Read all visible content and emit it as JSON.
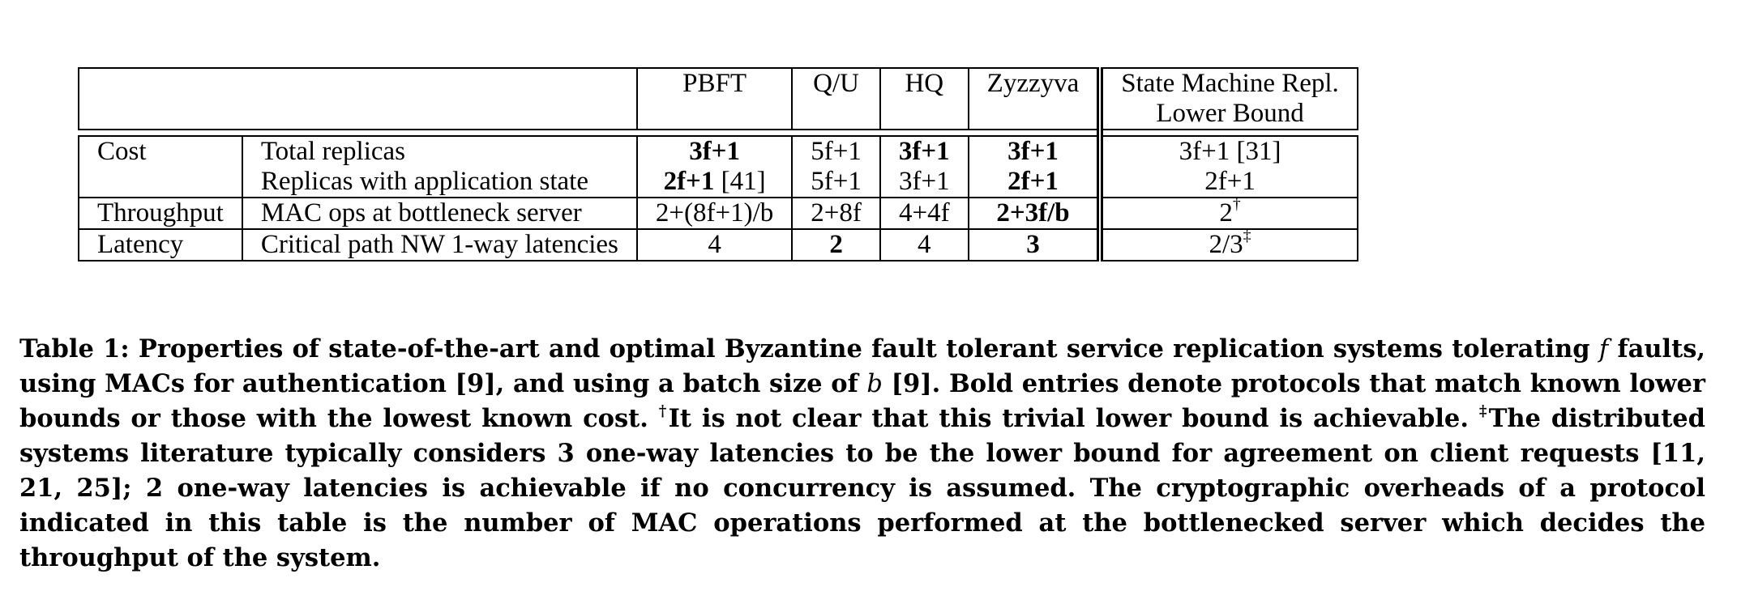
{
  "table": {
    "columns": [
      "PBFT",
      "Q/U",
      "HQ",
      "Zyzzyva"
    ],
    "bound_header": [
      "State Machine Repl.",
      "Lower Bound"
    ],
    "rows": [
      {
        "group": "Cost",
        "metric": "Total replicas",
        "values": [
          "3f+1",
          "5f+1",
          "3f+1",
          "3f+1"
        ],
        "value_ref": [
          "",
          "",
          "",
          ""
        ],
        "bold": [
          true,
          false,
          true,
          true
        ],
        "bound": "3f+1",
        "bound_ref": "[31]",
        "bound_mark": ""
      },
      {
        "group": "",
        "metric": "Replicas with application state",
        "values": [
          "2f+1",
          "5f+1",
          "3f+1",
          "2f+1"
        ],
        "value_ref": [
          "[41]",
          "",
          "",
          ""
        ],
        "bold": [
          true,
          false,
          false,
          true
        ],
        "bound": "2f+1",
        "bound_ref": "",
        "bound_mark": ""
      },
      {
        "group": "Throughput",
        "metric": "MAC ops at bottleneck server",
        "values": [
          "2+(8f+1)/b",
          "2+8f",
          "4+4f",
          "2+3f/b"
        ],
        "value_ref": [
          "",
          "",
          "",
          ""
        ],
        "bold": [
          false,
          false,
          false,
          true
        ],
        "bound": "2",
        "bound_ref": "",
        "bound_mark": "†"
      },
      {
        "group": "Latency",
        "metric": "Critical path  NW 1-way latencies",
        "values": [
          "4",
          "2",
          "4",
          "3"
        ],
        "value_ref": [
          "",
          "",
          "",
          ""
        ],
        "bold": [
          false,
          true,
          false,
          true
        ],
        "bound": "2/3",
        "bound_ref": "",
        "bound_mark": "‡"
      }
    ]
  },
  "caption": {
    "p1": "Table 1: Properties of state-of-the-art and optimal Byzantine fault tolerant service replication systems tolerating ",
    "var_f": "f",
    "p2": " faults, using MACs for authentication [9], and using a batch size of ",
    "var_b": "b",
    "p3": " [9].  Bold entries denote protocols that match known lower bounds or those with the lowest known cost. ",
    "mark1": "†",
    "p4": "It is not clear that this trivial lower bound is achievable. ",
    "mark2": "‡",
    "p5": "The distributed systems literature typically considers 3 one-way latencies to be the lower bound for agreement on client requests [11, 21, 25]; 2 one-way latencies is achievable if no concurrency is assumed. The cryptographic overheads of a protocol indicated in this table is the number of MAC operations performed at the bottlenecked server which decides the throughput of the system."
  }
}
